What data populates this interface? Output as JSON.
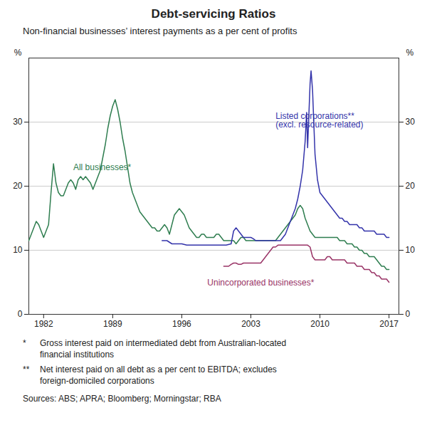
{
  "chart_data": {
    "type": "line",
    "title": "Debt-servicing Ratios",
    "subtitle": "Non-financial businesses’ interest payments as a per cent of profits",
    "ylabel": "%",
    "y2label": "%",
    "xlim": [
      1980.5,
      2018
    ],
    "xticks": [
      1982,
      1989,
      1996,
      2003,
      2010,
      2017
    ],
    "ylim": [
      0,
      40
    ],
    "yticks": [
      0,
      10,
      20,
      30
    ],
    "y2lim": [
      0,
      40
    ],
    "y2ticks": [
      0,
      10,
      20,
      30
    ],
    "grid": true,
    "series": [
      {
        "name": "All businesses*",
        "color": "#2e7d4f",
        "annotation": {
          "x": 1985.0,
          "y": 22.5
        },
        "x": [
          1980.5,
          1980.75,
          1981.0,
          1981.25,
          1981.5,
          1981.75,
          1982.0,
          1982.25,
          1982.5,
          1982.75,
          1983.0,
          1983.25,
          1983.5,
          1983.75,
          1984.0,
          1984.25,
          1984.5,
          1984.75,
          1985.0,
          1985.25,
          1985.5,
          1985.75,
          1986.0,
          1986.25,
          1986.5,
          1986.75,
          1987.0,
          1987.25,
          1987.5,
          1987.75,
          1988.0,
          1988.25,
          1988.5,
          1988.75,
          1989.0,
          1989.25,
          1989.5,
          1989.75,
          1990.0,
          1990.25,
          1990.5,
          1990.75,
          1991.0,
          1991.25,
          1991.5,
          1991.75,
          1992.0,
          1992.25,
          1992.5,
          1992.75,
          1993.0,
          1993.25,
          1993.5,
          1993.75,
          1994.0,
          1994.25,
          1994.5,
          1994.75,
          1995.0,
          1995.25,
          1995.5,
          1995.75,
          1996.0,
          1996.25,
          1996.5,
          1996.75,
          1997.0,
          1997.25,
          1997.5,
          1997.75,
          1998.0,
          1998.25,
          1998.5,
          1998.75,
          1999.0,
          1999.25,
          1999.5,
          1999.75,
          2000.0,
          2000.25,
          2000.5,
          2000.75,
          2001.0,
          2001.25,
          2001.5,
          2001.75,
          2002.0,
          2002.25,
          2002.5,
          2002.75,
          2003.0,
          2003.25,
          2003.5,
          2003.75,
          2004.0,
          2004.25,
          2004.5,
          2004.75,
          2005.0,
          2005.25,
          2005.5,
          2005.75,
          2006.0,
          2006.25,
          2006.5,
          2006.75,
          2007.0,
          2007.25,
          2007.5,
          2007.75,
          2008.0,
          2008.25,
          2008.5,
          2008.75,
          2009.0,
          2009.25,
          2009.5,
          2009.75,
          2010.0,
          2010.25,
          2010.5,
          2010.75,
          2011.0,
          2011.25,
          2011.5,
          2011.75,
          2012.0,
          2012.25,
          2012.5,
          2012.75,
          2013.0,
          2013.25,
          2013.5,
          2013.75,
          2014.0,
          2014.25,
          2014.5,
          2014.75,
          2015.0,
          2015.25,
          2015.5,
          2015.75,
          2016.0,
          2016.25,
          2016.5,
          2016.75,
          2017.0
        ],
        "values": [
          11.5,
          12.5,
          13.5,
          14.5,
          14.0,
          13.0,
          12.0,
          13.0,
          14.0,
          19.0,
          23.5,
          20.5,
          19.0,
          18.5,
          18.5,
          19.5,
          20.5,
          21.0,
          20.5,
          19.5,
          21.0,
          21.5,
          21.0,
          21.5,
          21.0,
          20.5,
          19.5,
          20.5,
          21.5,
          22.5,
          24.5,
          26.5,
          29.0,
          31.0,
          32.5,
          33.5,
          32.0,
          30.0,
          27.5,
          25.5,
          23.0,
          20.5,
          19.0,
          18.0,
          17.0,
          16.0,
          15.5,
          15.0,
          14.5,
          14.0,
          13.5,
          13.5,
          13.0,
          13.0,
          13.5,
          14.0,
          13.5,
          12.5,
          14.0,
          15.5,
          16.0,
          16.5,
          16.0,
          15.5,
          14.5,
          13.5,
          13.0,
          12.5,
          12.0,
          12.0,
          12.5,
          12.5,
          12.0,
          12.0,
          12.0,
          12.0,
          12.5,
          12.5,
          12.0,
          11.5,
          11.5,
          11.5,
          11.5,
          11.5,
          11.0,
          11.5,
          12.0,
          12.0,
          11.5,
          11.5,
          11.5,
          11.5,
          11.5,
          11.5,
          11.5,
          11.5,
          11.5,
          11.5,
          11.5,
          11.5,
          11.5,
          12.0,
          12.5,
          13.0,
          13.5,
          14.0,
          14.5,
          15.0,
          15.5,
          16.5,
          17.0,
          16.5,
          15.0,
          14.0,
          13.0,
          12.5,
          12.0,
          12.0,
          12.0,
          12.0,
          12.0,
          12.0,
          12.0,
          12.0,
          12.0,
          12.0,
          11.5,
          11.5,
          11.5,
          11.0,
          11.0,
          11.0,
          10.5,
          10.5,
          10.0,
          10.0,
          9.5,
          9.5,
          9.0,
          9.0,
          9.0,
          8.5,
          8.0,
          7.5,
          7.5,
          7.0,
          7.0
        ]
      },
      {
        "name": "Listed corporations**\n(excl. resource-related)",
        "color": "#3333aa",
        "annotation": {
          "x": 2005.5,
          "y": 31.5
        },
        "x": [
          1994.0,
          1994.5,
          1995.0,
          1995.5,
          1996.0,
          1996.5,
          1997.0,
          1997.5,
          1998.0,
          1998.5,
          1999.0,
          1999.5,
          2000.0,
          2000.5,
          2001.0,
          2001.25,
          2001.5,
          2001.75,
          2002.0,
          2002.25,
          2002.5,
          2002.75,
          2003.0,
          2003.25,
          2003.5,
          2003.75,
          2004.0,
          2004.25,
          2004.5,
          2004.75,
          2005.0,
          2005.25,
          2005.5,
          2005.75,
          2006.0,
          2006.25,
          2006.5,
          2006.75,
          2007.0,
          2007.25,
          2007.5,
          2007.75,
          2008.0,
          2008.25,
          2008.5,
          2008.65,
          2008.75,
          2009.0,
          2009.1,
          2009.25,
          2009.5,
          2009.75,
          2010.0,
          2010.25,
          2010.5,
          2010.75,
          2011.0,
          2011.25,
          2011.5,
          2011.75,
          2012.0,
          2012.25,
          2012.5,
          2012.75,
          2013.0,
          2013.25,
          2013.5,
          2013.75,
          2014.0,
          2014.25,
          2014.5,
          2014.75,
          2015.0,
          2015.25,
          2015.5,
          2015.75,
          2016.0,
          2016.25,
          2016.5,
          2016.75,
          2017.0
        ],
        "values": [
          11.5,
          11.5,
          11.0,
          11.0,
          11.0,
          10.8,
          10.8,
          10.8,
          10.8,
          10.8,
          10.8,
          10.8,
          10.8,
          10.8,
          11.0,
          13.0,
          13.5,
          13.0,
          12.5,
          12.0,
          12.0,
          12.0,
          12.0,
          11.8,
          11.5,
          11.5,
          11.5,
          11.5,
          11.5,
          11.5,
          11.5,
          11.5,
          11.5,
          11.5,
          11.5,
          12.0,
          12.5,
          13.5,
          14.5,
          15.5,
          16.5,
          18.0,
          20.0,
          22.5,
          27.0,
          31.5,
          26.0,
          36.0,
          38.0,
          35.0,
          25.0,
          21.0,
          19.0,
          18.5,
          18.0,
          17.5,
          17.0,
          16.5,
          16.0,
          15.5,
          15.0,
          15.0,
          14.5,
          14.5,
          14.0,
          14.0,
          14.0,
          14.0,
          13.5,
          13.5,
          13.0,
          13.0,
          13.0,
          13.0,
          13.0,
          12.5,
          12.5,
          12.5,
          12.5,
          12.0,
          12.0
        ]
      },
      {
        "name": "Unincorporated businesses*",
        "color": "#993366",
        "annotation": {
          "x": 2004.0,
          "y": 5.5
        },
        "x": [
          2000.25,
          2000.5,
          2000.75,
          2001.0,
          2001.25,
          2001.5,
          2001.75,
          2002.0,
          2002.25,
          2002.5,
          2002.75,
          2003.0,
          2003.25,
          2003.5,
          2003.75,
          2004.0,
          2004.25,
          2004.5,
          2004.75,
          2005.0,
          2005.25,
          2005.5,
          2005.75,
          2006.0,
          2006.25,
          2006.5,
          2006.75,
          2007.0,
          2007.25,
          2007.5,
          2007.75,
          2008.0,
          2008.25,
          2008.5,
          2008.75,
          2009.0,
          2009.25,
          2009.5,
          2009.75,
          2010.0,
          2010.25,
          2010.5,
          2010.75,
          2011.0,
          2011.25,
          2011.5,
          2011.75,
          2012.0,
          2012.25,
          2012.5,
          2012.75,
          2013.0,
          2013.25,
          2013.5,
          2013.75,
          2014.0,
          2014.25,
          2014.5,
          2014.75,
          2015.0,
          2015.25,
          2015.5,
          2015.75,
          2016.0,
          2016.25,
          2016.5,
          2016.75,
          2017.0
        ],
        "values": [
          7.5,
          7.5,
          7.5,
          7.8,
          8.0,
          8.0,
          7.8,
          7.8,
          8.0,
          8.0,
          8.0,
          8.0,
          8.0,
          8.0,
          8.0,
          8.0,
          8.5,
          9.0,
          9.5,
          10.0,
          10.5,
          10.5,
          10.8,
          10.8,
          10.8,
          10.8,
          10.8,
          10.8,
          10.8,
          10.8,
          10.8,
          10.8,
          10.8,
          10.8,
          10.8,
          10.5,
          9.0,
          8.5,
          8.5,
          8.5,
          8.5,
          8.5,
          9.0,
          9.0,
          8.5,
          8.5,
          8.5,
          8.5,
          8.5,
          8.5,
          8.0,
          8.0,
          8.0,
          8.0,
          7.5,
          7.5,
          7.5,
          7.0,
          7.0,
          7.0,
          6.5,
          6.5,
          6.0,
          6.0,
          5.5,
          5.5,
          5.5,
          5.0
        ]
      }
    ],
    "notes": [
      {
        "marker": "*",
        "text": "Gross interest paid on intermediated debt from Australian-located\nfinancial institutions"
      },
      {
        "marker": "**",
        "text": "Net interest paid on all debt as a per cent to EBITDA; excludes\nforeign-domiciled corporations"
      }
    ],
    "sources": "Sources: ABS; APRA; Bloomberg; Morningstar; RBA"
  }
}
